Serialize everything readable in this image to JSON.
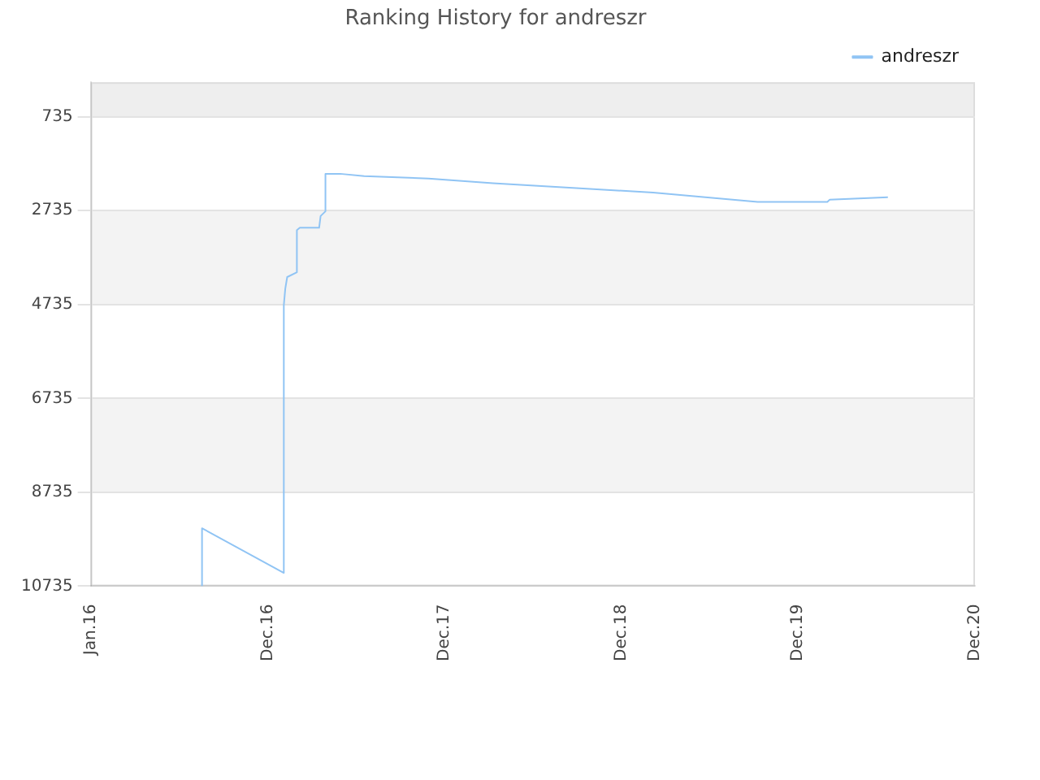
{
  "chart_data": {
    "type": "line",
    "title": "Ranking History for andreszr",
    "x": [
      "2016-08-17",
      "2016-08-17",
      "2017-02-02",
      "2017-02-02",
      "2017-02-05",
      "2017-02-09",
      "2017-03-01",
      "2017-03-01",
      "2017-03-07",
      "2017-04-16",
      "2017-04-19",
      "2017-04-29",
      "2017-04-29",
      "2017-05-29",
      "2017-07-18",
      "2017-11-28",
      "2018-04-10",
      "2018-09-22",
      "2019-03-07",
      "2019-10-09",
      "2020-03-01",
      "2020-03-06",
      "2020-07-04"
    ],
    "series": [
      {
        "name": "andreszr",
        "color": "#90c4f4",
        "values": [
          10735,
          9500,
          10450,
          4750,
          4400,
          4150,
          4050,
          3150,
          3100,
          3100,
          2850,
          2750,
          1950,
          1950,
          2000,
          2050,
          2150,
          2250,
          2350,
          2550,
          2550,
          2500,
          2450
        ]
      }
    ],
    "bands": [
      {
        "axis": "y",
        "from": 0,
        "to": 735,
        "color": "#eeeeee"
      },
      {
        "axis": "y",
        "from": 2735,
        "to": 4735,
        "color": "#f3f3f3"
      },
      {
        "axis": "y",
        "from": 6735,
        "to": 8735,
        "color": "#f3f3f3"
      }
    ],
    "xlim": [
      "2015-12-31",
      "2020-12-31"
    ],
    "xticks": [
      {
        "value": "2016-01-01",
        "label": "Jan.16"
      },
      {
        "value": "2016-12-31",
        "label": "Dec.16"
      },
      {
        "value": "2017-12-31",
        "label": "Dec.17"
      },
      {
        "value": "2018-12-31",
        "label": "Dec.18"
      },
      {
        "value": "2019-12-31",
        "label": "Dec.19"
      },
      {
        "value": "2020-12-31",
        "label": "Dec.20"
      }
    ],
    "ylim": [
      10735,
      0
    ],
    "yticks": [
      735,
      2735,
      4735,
      6735,
      8735,
      10735
    ],
    "grid": "y",
    "legend": "top right",
    "marker": "none",
    "line_style": "solid"
  }
}
